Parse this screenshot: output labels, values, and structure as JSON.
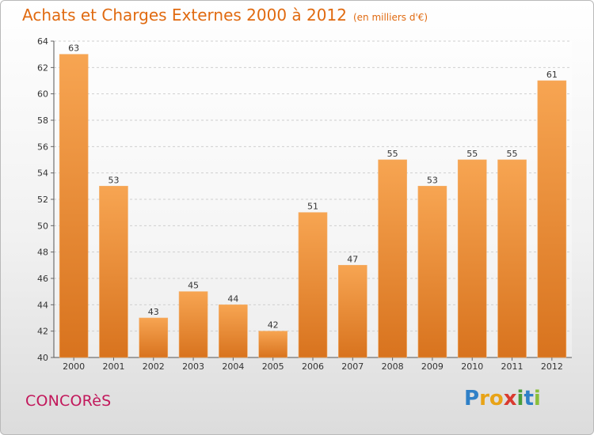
{
  "chart_data": {
    "type": "bar",
    "title": "Achats et Charges Externes 2000 à 2012",
    "subtitle": "(en milliers d'€)",
    "xlabel": "",
    "ylabel": "",
    "categories": [
      "2000",
      "2001",
      "2002",
      "2003",
      "2004",
      "2005",
      "2006",
      "2007",
      "2008",
      "2009",
      "2010",
      "2011",
      "2012"
    ],
    "values": [
      63,
      53,
      43,
      45,
      44,
      42,
      51,
      47,
      55,
      53,
      55,
      55,
      61
    ],
    "ylim": [
      40,
      64
    ],
    "yticks": [
      40,
      42,
      44,
      46,
      48,
      50,
      52,
      54,
      56,
      58,
      60,
      62,
      64
    ],
    "grid": true,
    "legend": "none",
    "colors": {
      "bar_top": "#f7a552",
      "bar_bottom": "#d8731e",
      "grid": "#cfcfcf"
    }
  },
  "footer": {
    "commune": "CONCORèS",
    "logo_letters": [
      "P",
      "r",
      "o",
      "x",
      "i",
      "t",
      "i"
    ],
    "logo_colors": [
      "#2f80c7",
      "#e8a317",
      "#e8a317",
      "#d93a2f",
      "#4a9e3a",
      "#2f80c7",
      "#8bbf3a"
    ]
  }
}
